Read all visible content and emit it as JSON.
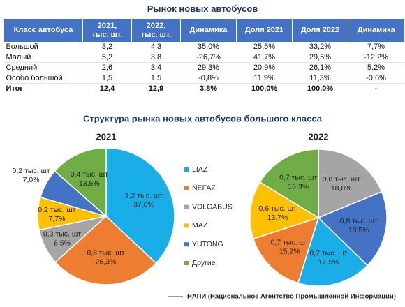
{
  "title": "Рынок новых автобусов",
  "table": {
    "header": [
      "Класс автобуса",
      "2021,\nтыс. шт.",
      "2022,\nтыс. шт.",
      "Динамика",
      "Доля 2021",
      "Доля 2022",
      "Динамика"
    ],
    "rows": [
      [
        "Большой",
        "3,2",
        "4,3",
        "35,0%",
        "25,5%",
        "33,2%",
        "7,7%"
      ],
      [
        "Малый",
        "5,2",
        "3,8",
        "-26,7%",
        "41,7%",
        "29,5%",
        "-12,2%"
      ],
      [
        "Средний",
        "2,6",
        "3,4",
        "29,3%",
        "20,9%",
        "26,1%",
        "5,2%"
      ],
      [
        "Особо большой",
        "1,5",
        "1,5",
        "-0,8%",
        "11,9%",
        "11,3%",
        "-0,6%"
      ],
      [
        "Итог",
        "12,4",
        "12,9",
        "3,8%",
        "100,0%",
        "100,0%",
        "-"
      ]
    ]
  },
  "subtitle": "Структура рынка новых автобусов большого класса",
  "chart_data": [
    {
      "type": "pie",
      "title": "2021",
      "categories": [
        "LIAZ",
        "NEFAZ",
        "VOLGABUS",
        "MAZ",
        "YUTONG",
        "Другие"
      ],
      "colors": [
        "#1aaee8",
        "#ed7d31",
        "#a5a5a5",
        "#ffc000",
        "#4472c4",
        "#70ad47"
      ],
      "values": [
        37.0,
        26.3,
        8.5,
        7.7,
        7.0,
        13.5
      ],
      "value_labels": [
        "37,0%",
        "26,3%",
        "8,5%",
        "7,7%",
        "7,0%",
        "13,5%"
      ],
      "counts": [
        1.2,
        0.8,
        0.3,
        0.2,
        0.2,
        0.4
      ],
      "count_labels": [
        "1,2 тыс. шт",
        "0,8 тыс. шт",
        "0,3 тыс. шт",
        "0,2 тыс. шт",
        "0,2 тыс. шт",
        "0,4 тыс. шт"
      ],
      "legend": "right"
    },
    {
      "type": "pie",
      "title": "2022",
      "categories": [
        "VOLGABUS",
        "YUTONG",
        "LIAZ",
        "NEFAZ",
        "MAZ",
        "Другие"
      ],
      "values": [
        18.8,
        18.5,
        17.5,
        15.2,
        13.7,
        16.3
      ],
      "value_labels": [
        "18,8%",
        "18,5%",
        "17,5%",
        "15,2%",
        "13,7%",
        "16,3%"
      ],
      "counts": [
        0.8,
        0.8,
        0.7,
        0.7,
        0.6,
        0.7
      ],
      "count_labels": [
        "0,8 тыс. шт",
        "0,8 тыс. шт",
        "0,7 тыс. шт",
        "0,7 тыс. шт",
        "0,6 тыс. шт",
        "0,7 тыс. шт"
      ]
    }
  ],
  "source": "НАПИ (Национальное Агентство Промышленной Информации)"
}
